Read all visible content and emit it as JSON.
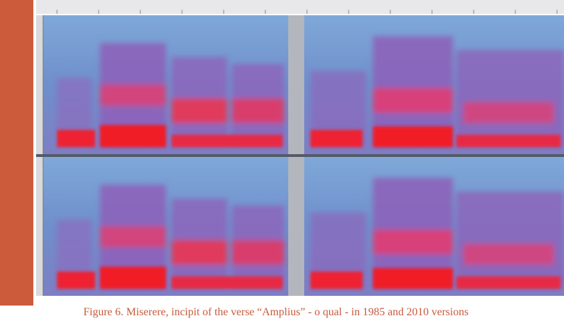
{
  "figure": {
    "caption": "Figure 6. Miserere, incipit of the verse “Amplius” - o qual - in 1985 and 2010 versions"
  }
}
